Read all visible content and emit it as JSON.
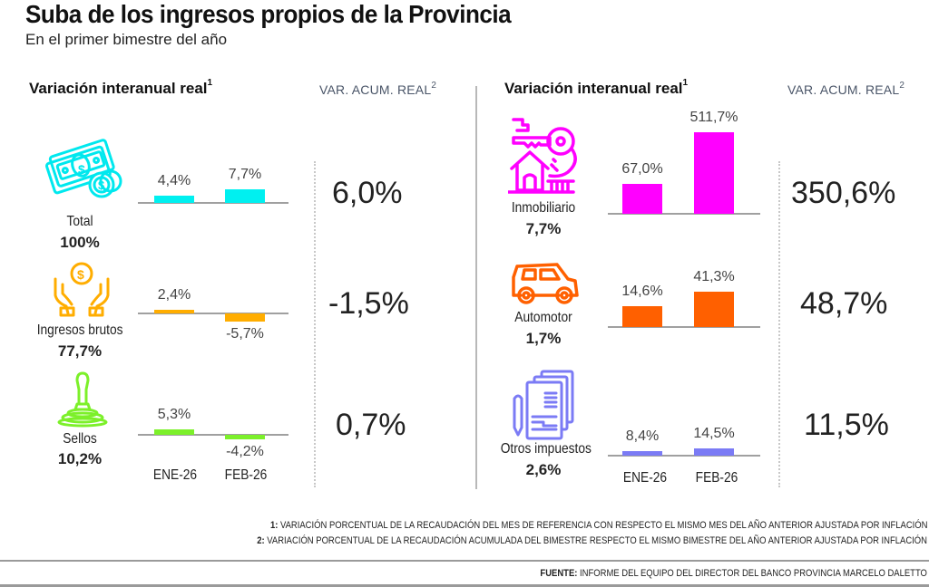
{
  "header": {
    "title": "Suba de los ingresos propios de la Provincia",
    "subtitle": "En el primer bimestre del año"
  },
  "left_panel": {
    "section_title": "Variación interanual real",
    "section_title_sup": "1",
    "acum_header": "VAR. ACUM. REAL",
    "acum_header_sup": "2"
  },
  "right_panel": {
    "section_title": "Variación interanual real",
    "section_title_sup": "1",
    "acum_header": "VAR. ACUM. REAL",
    "acum_header_sup": "2"
  },
  "months": [
    "ENE-26",
    "FEB-26"
  ],
  "chart_data": {
    "type": "bar",
    "title": "Suba de los ingresos propios de la Provincia",
    "subtitle": "En el primer bimestre del año",
    "ylabel": "Variación interanual real (%)",
    "categories": [
      "ENE-26",
      "FEB-26"
    ],
    "grid": false,
    "series": [
      {
        "name": "Total",
        "share": "100%",
        "values": [
          4.4,
          7.7
        ],
        "labels": [
          "4,4%",
          "7,7%"
        ],
        "acum": "6,0%",
        "color": "#00f0f0",
        "icon": "money-icon"
      },
      {
        "name": "Ingresos brutos",
        "share": "77,7%",
        "values": [
          2.4,
          -5.7
        ],
        "labels": [
          "2,4%",
          "-5,7%"
        ],
        "acum": "-1,5%",
        "color": "#ffad00",
        "icon": "hands-coin-icon"
      },
      {
        "name": "Sellos",
        "share": "10,2%",
        "values": [
          5.3,
          -4.2
        ],
        "labels": [
          "5,3%",
          "-4,2%"
        ],
        "acum": "0,7%",
        "color": "#7cf02a",
        "icon": "stamp-icon"
      },
      {
        "name": "Inmobiliario",
        "share": "7,7%",
        "values": [
          67.0,
          511.7
        ],
        "labels": [
          "67,0%",
          "511,7%"
        ],
        "acum": "350,6%",
        "color": "#ff00ff",
        "icon": "house-key-icon"
      },
      {
        "name": "Automotor",
        "share": "1,7%",
        "values": [
          14.6,
          41.3
        ],
        "labels": [
          "14,6%",
          "41,3%"
        ],
        "acum": "48,7%",
        "color": "#ff6000",
        "icon": "car-icon"
      },
      {
        "name": "Otros impuestos",
        "share": "2,6%",
        "values": [
          8.4,
          14.5
        ],
        "labels": [
          "8,4%",
          "14,5%"
        ],
        "acum": "11,5%",
        "color": "#7b7bf5",
        "icon": "documents-icon"
      }
    ]
  },
  "notes": {
    "note1_num": "1:",
    "note1_text": " VARIACIÓN PORCENTUAL DE LA RECAUDACIÓN DEL MES DE REFERENCIA CON RESPECTO EL MISMO MES DEL AÑO ANTERIOR AJUSTADA POR INFLACIÓN",
    "note2_num": "2:",
    "note2_text": " VARIACIÓN PORCENTUAL DE LA RECAUDACIÓN ACUMULADA DEL BIMESTRE RESPECTO EL MISMO BIMESTRE DEL AÑO ANTERIOR AJUSTADA POR INFLACIÓN",
    "source_label": "FUENTE:",
    "source_text": " INFORME DEL EQUIPO DEL DIRECTOR DEL BANCO PROVINCIA MARCELO DALETTO"
  }
}
